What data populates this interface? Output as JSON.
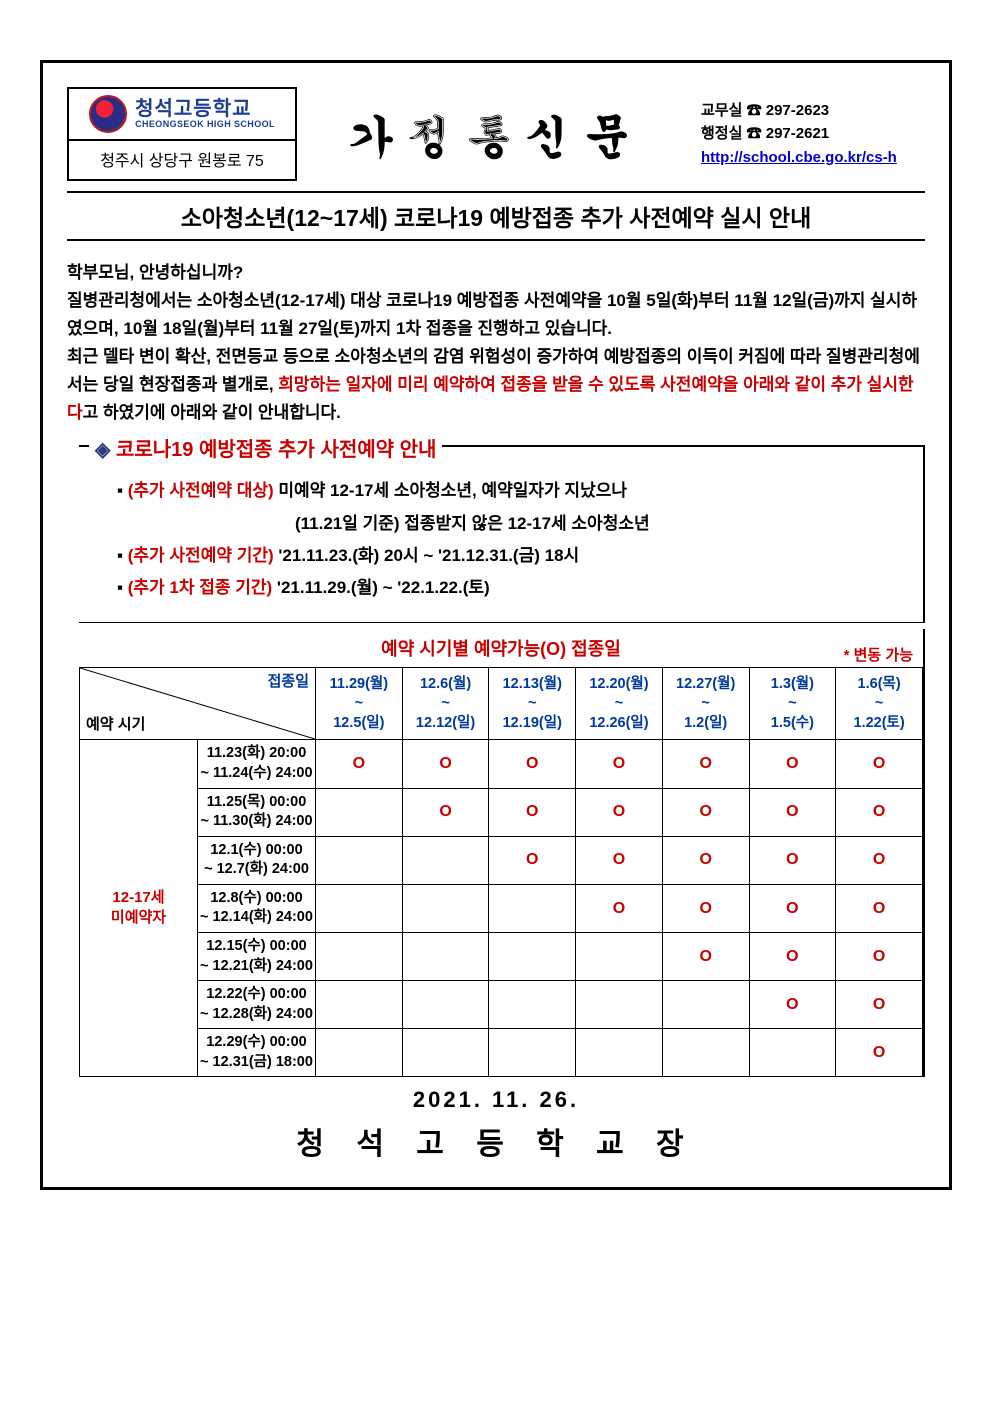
{
  "header": {
    "school_name_ko": "청석고등학교",
    "school_name_en": "CHEONGSEOK HIGH SCHOOL",
    "address": "청주시 상당구 원봉로 75",
    "doc_title": "가정통신문",
    "contacts": {
      "line1": "교무실 ☎ 297-2623",
      "line2": "행정실 ☎ 297-2621",
      "link": "http://school.cbe.go.kr/cs-h"
    }
  },
  "subject": "소아청소년(12~17세) 코로나19 예방접종 추가 사전예약 실시 안내",
  "body": {
    "p1": "학부모님, 안녕하십니까?",
    "p2a": "질병관리청에서는 소아청소년(12-17세) 대상 코로나19 예방접종 사전예약을 10월 5일(화)부터 11월 12일(금)까지 실시하였으며, 10월 18일(월)부터 11월 27일(토)까지 1차 접종을 진행하고 있습니다.",
    "p3a": "최근 델타 변이 확산, 전면등교 등으로 소아청소년의 감염 위험성이 증가하여 예방접종의 이득이 커짐에 따라 질병관리청에서는 당일 현장접종과 별개로, ",
    "p3red": "희망하는 일자에 미리 예약하여 접종을 받을 수 있도록 사전예약을 아래와 같이 추가 실시한다",
    "p3b": "고 하였기에 아래와 같이 안내합니다."
  },
  "info": {
    "title_prefix": "◈ ",
    "title": "코로나19 예방접종 추가 사전예약 안내",
    "items": [
      {
        "label": "(추가 사전예약 대상) ",
        "text": "미예약 12-17세 소아청소년, 예약일자가 지났으나",
        "cont": "(11.21일 기준) 접종받지 않은 12-17세 소아청소년"
      },
      {
        "label": "(추가 사전예약 기간) ",
        "text": "'21.11.23.(화) 20시 ~ '21.12.31.(금) 18시"
      },
      {
        "label": "(추가 1차 접종 기간) ",
        "text": "'21.11.29.(월) ~ '22.1.22.(토)"
      }
    ]
  },
  "table": {
    "caption": "예약 시기별 예약가능(O) 접종일",
    "note": "* 변동 가능",
    "diag_top": "접종일",
    "diag_bottom": "예약 시기",
    "row_group": "12-17세\n미예약자",
    "date_cols": [
      {
        "top": "11.29(월)",
        "mid": "~",
        "bot": "12.5(일)"
      },
      {
        "top": "12.6(월)",
        "mid": "~",
        "bot": "12.12(일)"
      },
      {
        "top": "12.13(월)",
        "mid": "~",
        "bot": "12.19(일)"
      },
      {
        "top": "12.20(월)",
        "mid": "~",
        "bot": "12.26(일)"
      },
      {
        "top": "12.27(월)",
        "mid": "~",
        "bot": "1.2(일)"
      },
      {
        "top": "1.3(월)",
        "mid": "~",
        "bot": "1.5(수)"
      },
      {
        "top": "1.6(목)",
        "mid": "~",
        "bot": "1.22(토)"
      }
    ],
    "rows": [
      {
        "period": "11.23(화) 20:00\n~ 11.24(수) 24:00",
        "avail": [
          "O",
          "O",
          "O",
          "O",
          "O",
          "O",
          "O"
        ]
      },
      {
        "period": "11.25(목) 00:00\n~ 11.30(화) 24:00",
        "avail": [
          "",
          "O",
          "O",
          "O",
          "O",
          "O",
          "O"
        ]
      },
      {
        "period": "12.1(수) 00:00\n~ 12.7(화) 24:00",
        "avail": [
          "",
          "",
          "O",
          "O",
          "O",
          "O",
          "O"
        ]
      },
      {
        "period": "12.8(수) 00:00\n~ 12.14(화) 24:00",
        "avail": [
          "",
          "",
          "",
          "O",
          "O",
          "O",
          "O"
        ]
      },
      {
        "period": "12.15(수) 00:00\n~ 12.21(화) 24:00",
        "avail": [
          "",
          "",
          "",
          "",
          "O",
          "O",
          "O"
        ]
      },
      {
        "period": "12.22(수) 00:00\n~ 12.28(화) 24:00",
        "avail": [
          "",
          "",
          "",
          "",
          "",
          "O",
          "O"
        ]
      },
      {
        "period": "12.29(수) 00:00\n~ 12.31(금) 18:00",
        "avail": [
          "",
          "",
          "",
          "",
          "",
          "",
          "O"
        ]
      }
    ]
  },
  "footer": {
    "date": "2021.  11.  26.",
    "signature": "청 석 고 등 학 교 장"
  },
  "styles": {
    "accent_red": "#c80000",
    "accent_blue": "#003a9c",
    "border_color": "#000000",
    "background": "#ffffff"
  }
}
